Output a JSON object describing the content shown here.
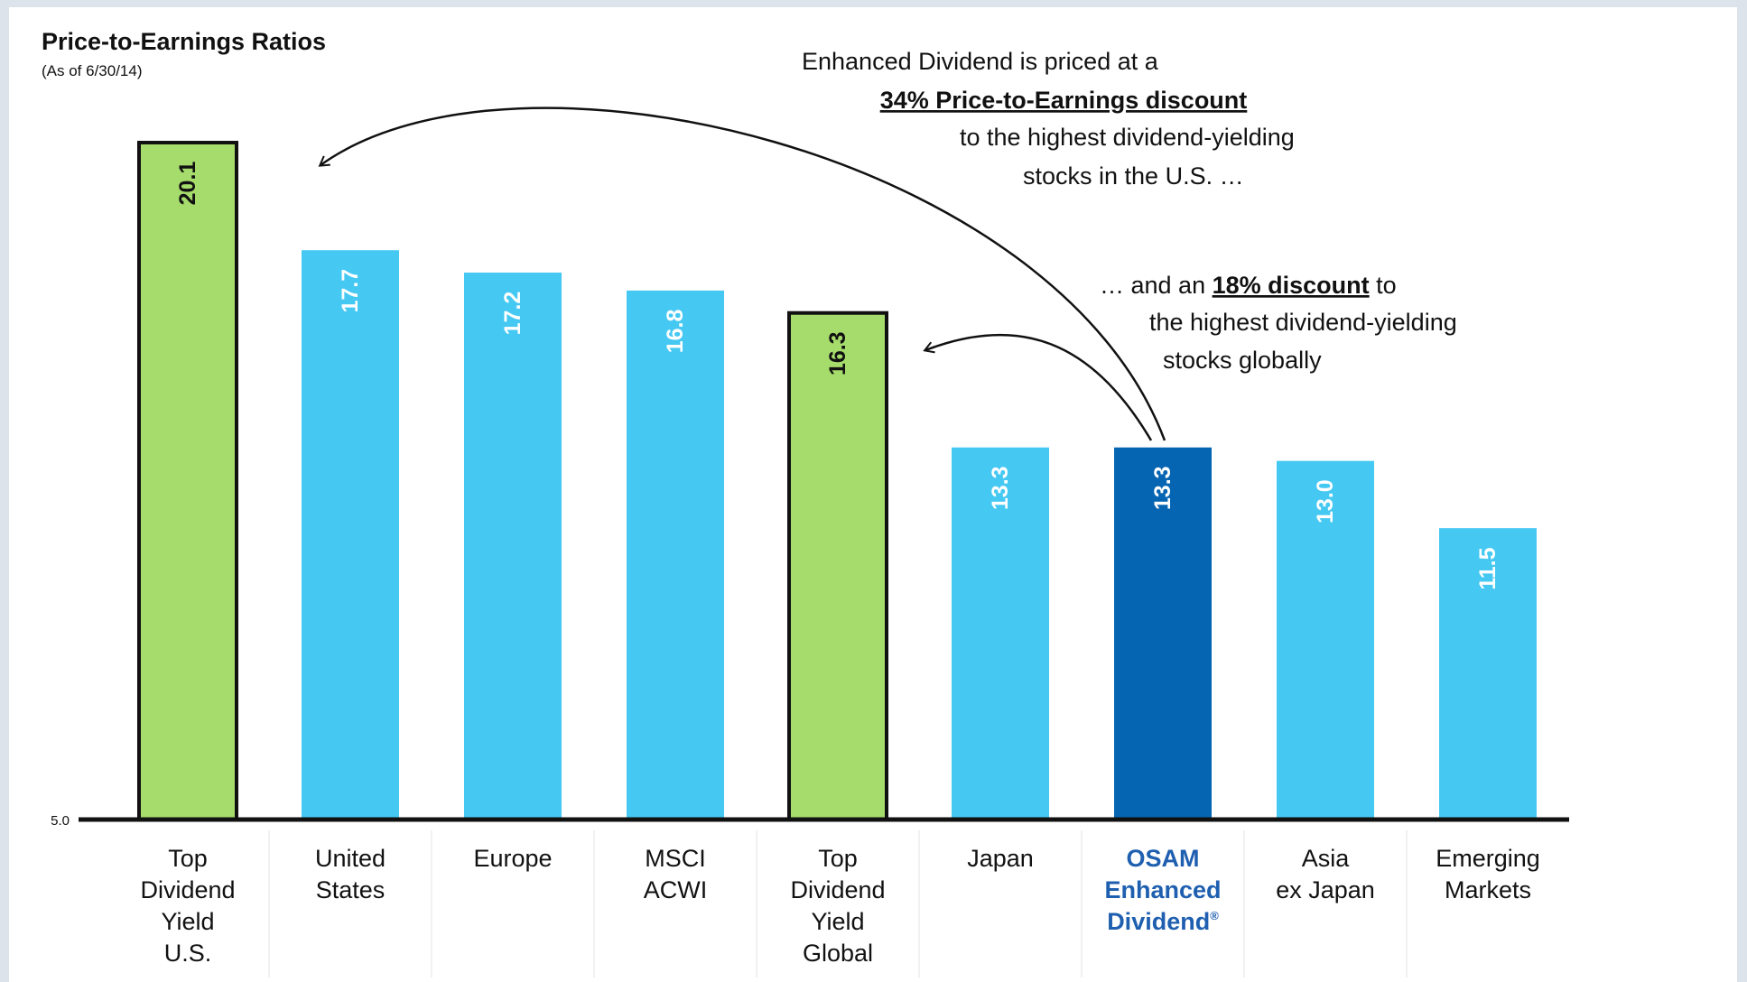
{
  "chart_data": {
    "type": "bar",
    "title": "Price-to-Earnings Ratios",
    "subtitle": "(As of 6/30/14)",
    "ylim": [
      5.0,
      21.0
    ],
    "ytick_label": "5.0",
    "grid": false,
    "categories": [
      [
        "Top",
        "Dividend",
        "Yield",
        "U.S."
      ],
      [
        "United",
        "States"
      ],
      [
        "Europe"
      ],
      [
        "MSCI",
        "ACWI"
      ],
      [
        "Top",
        "Dividend",
        "Yield",
        "Global"
      ],
      [
        "Japan"
      ],
      [
        "OSAM",
        "Enhanced",
        "Dividend"
      ],
      [
        "Asia",
        "ex Japan"
      ],
      [
        "Emerging",
        "Markets"
      ]
    ],
    "values": [
      20.1,
      17.7,
      17.2,
      16.8,
      16.3,
      13.3,
      13.3,
      13.0,
      11.5
    ],
    "value_labels": [
      "20.1",
      "17.7",
      "17.2",
      "16.8",
      "16.3",
      "13.3",
      "13.3",
      "13.0",
      "11.5"
    ],
    "highlight_category_index": 6,
    "registered_mark": "®",
    "colors": {
      "default": "#45c8f2",
      "top_dividend": "#a6dc6c",
      "osam": "#0565b2",
      "outline": "#111111",
      "highlight_text": "#1f5fb0"
    },
    "bar_styles": [
      "green",
      "blue",
      "blue",
      "blue",
      "green",
      "blue",
      "dark",
      "blue",
      "blue"
    ],
    "annotations": {
      "us": {
        "line1": "Enhanced Dividend is priced at a",
        "line2": "34% Price-to-Earnings discount",
        "line3": "to the highest dividend-yielding",
        "line4": "stocks in the U.S. …"
      },
      "global": {
        "pre": "… and an ",
        "bold": "18% discount",
        "post": " to",
        "line2": "the highest dividend-yielding",
        "line3": "stocks globally"
      }
    }
  }
}
